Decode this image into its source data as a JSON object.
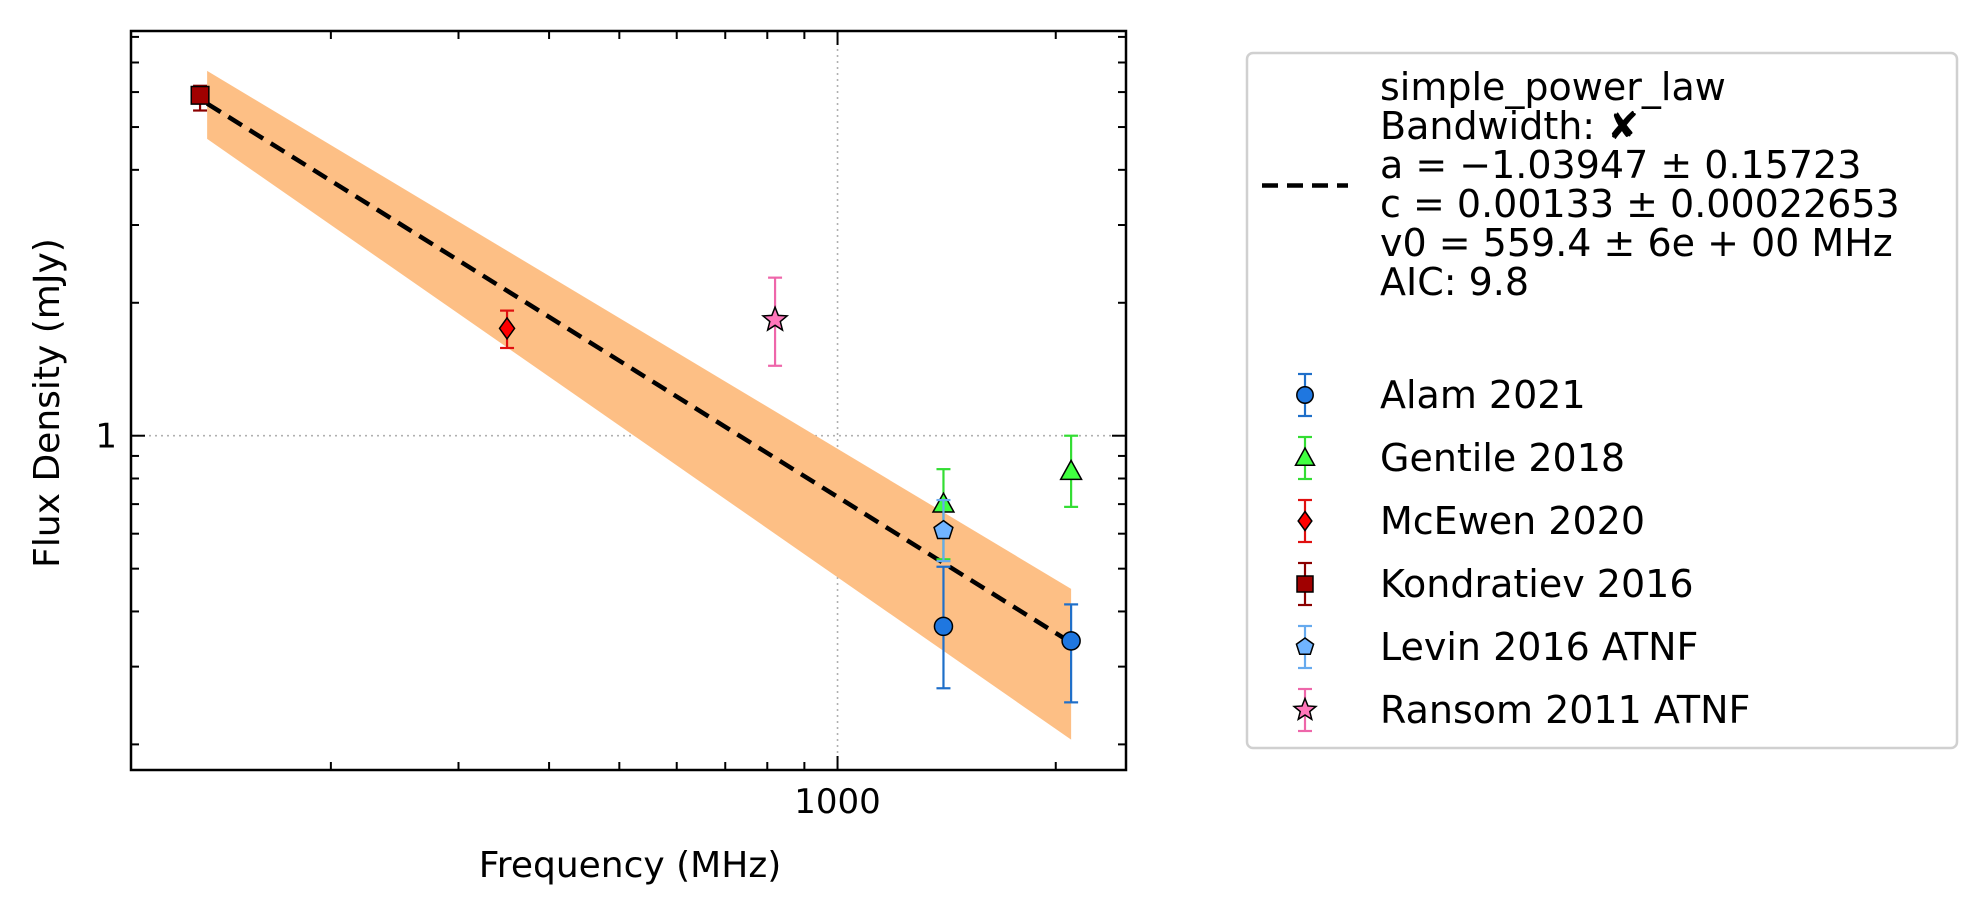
{
  "chart_data": {
    "type": "scatter",
    "title": "",
    "xlabel": "Frequency (MHz)",
    "ylabel": "Flux Density (mJy)",
    "xscale": "log",
    "yscale": "log",
    "xlim": [
      106,
      2500
    ],
    "ylim": [
      0.175,
      8.25
    ],
    "x_tick_labels": [
      {
        "value": 1000,
        "label": "1000"
      }
    ],
    "y_tick_labels": [
      {
        "value": 1,
        "label": "1"
      }
    ],
    "grid": "dotted at labelled ticks",
    "legend_position": "outside-right",
    "fit": {
      "name": "simple_power_law",
      "legend_lines": [
        "simple_power_law",
        "Bandwidth: ✘",
        "a = −1.03947 ± 0.15723",
        "c = 0.00133 ± 0.00022653",
        "v0 = 559.4 ± 6e + 00 MHz",
        "AIC: 9.8"
      ],
      "line_points": [
        {
          "x": 135,
          "y": 5.65
        },
        {
          "x": 2100,
          "y": 0.34
        }
      ],
      "band_upper": [
        {
          "x": 135,
          "y": 6.7
        },
        {
          "x": 2100,
          "y": 0.45
        }
      ],
      "band_lower": [
        {
          "x": 135,
          "y": 4.7
        },
        {
          "x": 2100,
          "y": 0.205
        }
      ],
      "line_color": "#000000",
      "band_color": "#fdbf85"
    },
    "series": [
      {
        "name": "Alam 2021",
        "marker": "circle",
        "color": "#1f77e0",
        "ecolor": "#1f6fc9",
        "points": [
          {
            "x": 1400,
            "y": 0.37,
            "ylo": 0.268,
            "yhi": 0.505
          },
          {
            "x": 2100,
            "y": 0.343,
            "ylo": 0.249,
            "yhi": 0.415
          }
        ]
      },
      {
        "name": "Gentile 2018",
        "marker": "triangle",
        "color": "#40ff40",
        "ecolor": "#33dd33",
        "points": [
          {
            "x": 1400,
            "y": 0.7,
            "ylo": 0.525,
            "yhi": 0.84
          },
          {
            "x": 2100,
            "y": 0.83,
            "ylo": 0.69,
            "yhi": 1.0
          }
        ]
      },
      {
        "name": "McEwen 2020",
        "marker": "diamond",
        "color": "#ff0000",
        "ecolor": "#e01010",
        "points": [
          {
            "x": 350,
            "y": 1.75,
            "ylo": 1.58,
            "yhi": 1.92
          }
        ]
      },
      {
        "name": "Kondratiev 2016",
        "marker": "square",
        "color": "#a00000",
        "ecolor": "#8b0000",
        "points": [
          {
            "x": 132,
            "y": 5.9,
            "ylo": 5.45,
            "yhi": 6.2
          }
        ]
      },
      {
        "name": "Levin 2016 ATNF",
        "marker": "pentagon",
        "color": "#70b4ff",
        "ecolor": "#66aaee",
        "points": [
          {
            "x": 1400,
            "y": 0.61,
            "ylo": 0.52,
            "yhi": 0.715
          }
        ]
      },
      {
        "name": "Ransom 2011 ATNF",
        "marker": "star",
        "color": "#ff77bb",
        "ecolor": "#ee66aa",
        "points": [
          {
            "x": 820,
            "y": 1.83,
            "ylo": 1.44,
            "yhi": 2.28
          }
        ]
      }
    ]
  }
}
